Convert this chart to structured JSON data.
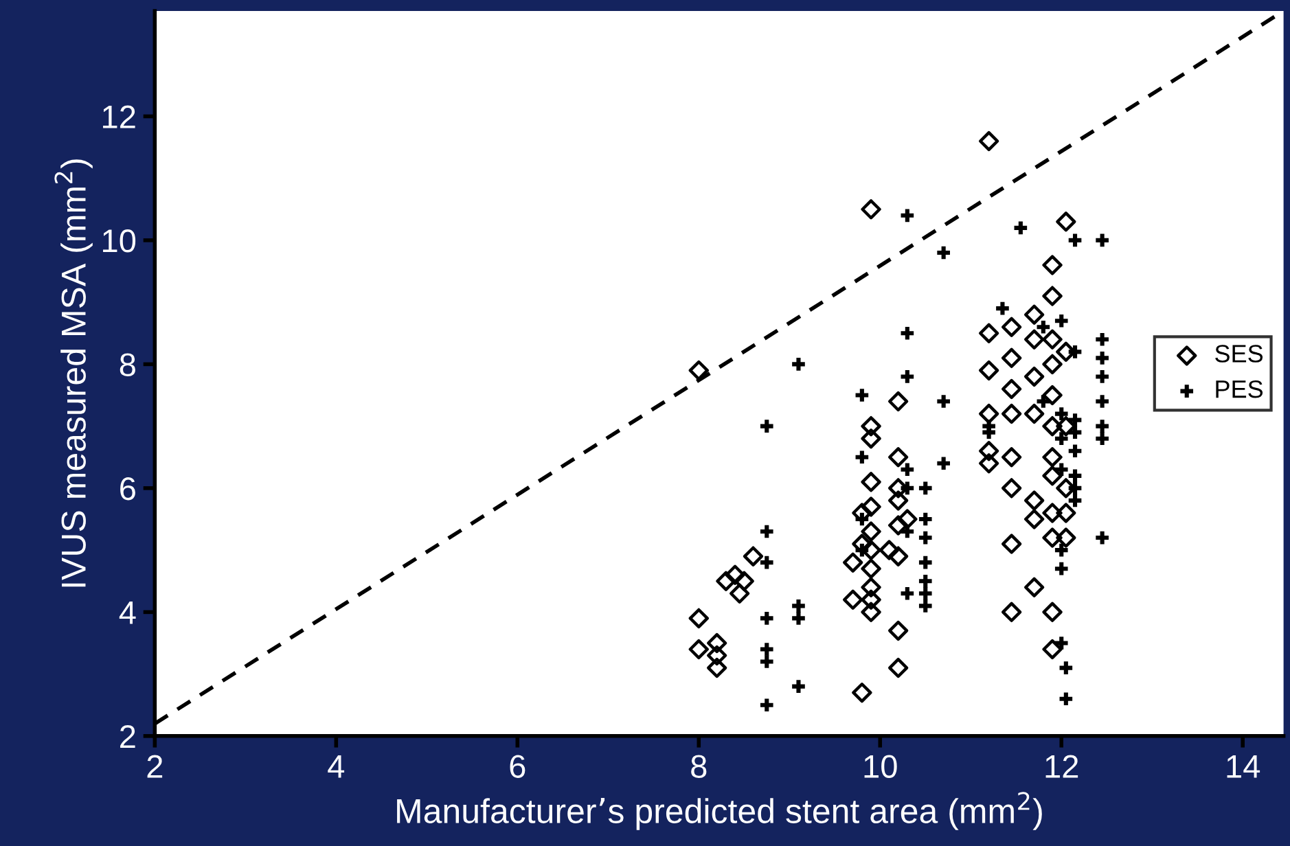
{
  "chart_data": {
    "type": "scatter",
    "xlabel": "Manufacturer’s predicted stent area (mm$^{2}$)",
    "ylabel": "IVUS measured MSA (mm$^{2}$)",
    "xlim": [
      2,
      14.45
    ],
    "ylim": [
      2,
      13.7
    ],
    "xticks": [
      2,
      4,
      6,
      8,
      10,
      12,
      14
    ],
    "yticks": [
      2,
      4,
      6,
      8,
      10,
      12
    ],
    "legend": "right",
    "grid": false,
    "series": [
      {
        "name": "SES",
        "color": "#000000",
        "marker": "diamond",
        "x": [
          8.0,
          8.0,
          8.0,
          8.2,
          8.2,
          8.2,
          8.3,
          8.45,
          8.5,
          8.6,
          8.4,
          9.7,
          9.7,
          9.8,
          9.9,
          9.9,
          9.9,
          9.9,
          9.9,
          9.9,
          9.9,
          9.9,
          9.9,
          9.9,
          9.9,
          9.8,
          9.8,
          10.2,
          10.2,
          10.2,
          10.2,
          10.2,
          10.2,
          10.2,
          10.2,
          10.1,
          10.3,
          11.2,
          11.2,
          11.2,
          11.2,
          11.2,
          11.2,
          11.45,
          11.45,
          11.45,
          11.45,
          11.45,
          11.45,
          11.45,
          11.45,
          11.7,
          11.7,
          11.7,
          11.7,
          11.7,
          11.7,
          11.7,
          11.9,
          11.9,
          11.9,
          11.9,
          11.9,
          11.9,
          11.9,
          11.9,
          11.9,
          11.9,
          11.9,
          11.9,
          12.05,
          12.05,
          12.05,
          12.05,
          12.05,
          12.05
        ],
        "values": [
          7.9,
          3.9,
          3.4,
          3.5,
          3.3,
          3.1,
          4.5,
          4.3,
          4.5,
          4.9,
          4.6,
          4.8,
          4.2,
          2.7,
          4.0,
          10.5,
          7.0,
          6.8,
          6.1,
          5.7,
          5.3,
          5.0,
          4.7,
          4.4,
          4.2,
          5.6,
          5.1,
          7.4,
          6.5,
          6.0,
          5.8,
          5.4,
          4.9,
          3.7,
          3.1,
          5.0,
          5.5,
          11.6,
          8.5,
          7.9,
          7.2,
          6.6,
          6.4,
          8.6,
          8.1,
          7.6,
          7.2,
          6.5,
          6.0,
          5.1,
          4.0,
          8.8,
          8.4,
          7.8,
          7.2,
          5.8,
          5.5,
          4.4,
          9.6,
          9.1,
          8.4,
          8.0,
          7.5,
          7.0,
          6.5,
          6.2,
          5.6,
          5.2,
          4.0,
          3.4,
          10.3,
          8.2,
          7.0,
          6.0,
          5.6,
          5.2
        ]
      },
      {
        "name": "PES",
        "color": "#000000",
        "marker": "cross",
        "x": [
          8.75,
          8.75,
          8.75,
          8.75,
          8.75,
          8.75,
          8.75,
          9.1,
          9.1,
          9.1,
          9.1,
          9.8,
          9.8,
          9.8,
          9.8,
          10.3,
          10.3,
          10.3,
          10.3,
          10.3,
          10.3,
          10.3,
          10.5,
          10.5,
          10.5,
          10.5,
          10.5,
          10.5,
          10.5,
          10.7,
          10.7,
          10.7,
          11.2,
          11.2,
          11.55,
          11.35,
          11.8,
          11.8,
          12.0,
          12.0,
          12.0,
          12.0,
          12.0,
          12.0,
          12.05,
          12.05,
          12.0,
          12.15,
          12.15,
          12.15,
          12.15,
          12.15,
          12.15,
          12.15,
          12.15,
          12.45,
          12.45,
          12.45,
          12.45,
          12.45,
          12.45,
          12.45,
          12.45
        ],
        "values": [
          7.0,
          5.3,
          4.8,
          3.9,
          3.4,
          3.2,
          2.5,
          8.0,
          4.1,
          3.9,
          2.8,
          7.5,
          6.5,
          5.5,
          5.0,
          10.4,
          8.5,
          7.8,
          6.3,
          5.3,
          4.3,
          6.0,
          6.0,
          5.5,
          5.2,
          4.8,
          4.5,
          4.3,
          4.1,
          9.8,
          7.4,
          6.4,
          7.0,
          6.9,
          10.2,
          8.9,
          8.6,
          7.4,
          7.2,
          6.8,
          6.3,
          5.0,
          4.7,
          3.5,
          3.1,
          2.6,
          8.7,
          8.2,
          7.1,
          6.9,
          6.6,
          6.2,
          6.0,
          5.8,
          10.0,
          10.0,
          8.4,
          8.1,
          7.8,
          7.4,
          7.0,
          6.8,
          5.2
        ]
      },
      {
        "type": "line",
        "color": "#000000",
        "line_style": "dashed",
        "x": [
          2,
          14.45
        ],
        "values": [
          2.2,
          13.7
        ]
      }
    ]
  }
}
